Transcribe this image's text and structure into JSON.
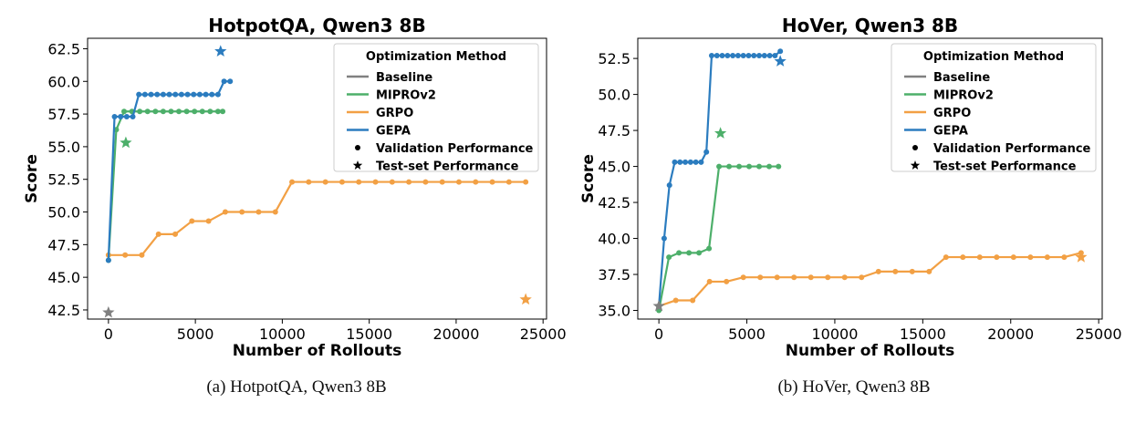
{
  "colors": {
    "baseline": "#808080",
    "mipro": "#4daf6a",
    "grpo": "#f2a044",
    "gepa": "#2b7cbf"
  },
  "chart_data": [
    {
      "type": "line",
      "title": "HotpotQA, Qwen3 8B",
      "caption": "(a) HotpotQA, Qwen3 8B",
      "xlabel": "Number of Rollouts",
      "ylabel": "Score",
      "xlim": [
        -1200,
        25200
      ],
      "ylim": [
        41.8,
        63.3
      ],
      "xticks": [
        0,
        5000,
        10000,
        15000,
        20000,
        25000
      ],
      "yticks": [
        42.5,
        45.0,
        47.5,
        50.0,
        52.5,
        55.0,
        57.5,
        60.0,
        62.5
      ],
      "legend": {
        "title": "Optimization Method",
        "entries": [
          "Baseline",
          "MIPROv2",
          "GRPO",
          "GEPA",
          "Validation Performance",
          "Test-set Performance"
        ]
      },
      "series": [
        {
          "name": "GRPO",
          "color": "#f2a044",
          "x": [
            0,
            960,
            1920,
            2880,
            3840,
            4800,
            5760,
            6720,
            7680,
            8640,
            9600,
            10560,
            11520,
            12480,
            13440,
            14400,
            15360,
            16320,
            17280,
            18240,
            19200,
            20160,
            21120,
            22080,
            23040,
            24000
          ],
          "y": [
            46.7,
            46.7,
            46.7,
            48.3,
            48.3,
            49.3,
            49.3,
            50.0,
            50.0,
            50.0,
            50.0,
            52.3,
            52.3,
            52.3,
            52.3,
            52.3,
            52.3,
            52.3,
            52.3,
            52.3,
            52.3,
            52.3,
            52.3,
            52.3,
            52.3,
            52.3
          ]
        },
        {
          "name": "MIPROv2",
          "color": "#4daf6a",
          "x": [
            0,
            450,
            900,
            1350,
            1800,
            2250,
            2700,
            3150,
            3600,
            4050,
            4500,
            4950,
            5400,
            5850,
            6300,
            6570
          ],
          "y": [
            46.3,
            56.3,
            57.7,
            57.7,
            57.7,
            57.7,
            57.7,
            57.7,
            57.7,
            57.7,
            57.7,
            57.7,
            57.7,
            57.7,
            57.7,
            57.7
          ]
        },
        {
          "name": "GEPA",
          "color": "#2b7cbf",
          "x": [
            0,
            350,
            700,
            1050,
            1400,
            1750,
            2100,
            2450,
            2800,
            3150,
            3500,
            3850,
            4200,
            4550,
            4900,
            5250,
            5600,
            5950,
            6300,
            6650,
            7000
          ],
          "y": [
            46.3,
            57.3,
            57.3,
            57.3,
            57.3,
            59.0,
            59.0,
            59.0,
            59.0,
            59.0,
            59.0,
            59.0,
            59.0,
            59.0,
            59.0,
            59.0,
            59.0,
            59.0,
            59.0,
            60.0,
            60.0
          ]
        }
      ],
      "test_points": [
        {
          "name": "Baseline",
          "color": "#808080",
          "x": 0,
          "y": 42.3
        },
        {
          "name": "MIPROv2",
          "color": "#4daf6a",
          "x": 1000,
          "y": 55.3
        },
        {
          "name": "GEPA",
          "color": "#2b7cbf",
          "x": 6450,
          "y": 62.3
        },
        {
          "name": "GRPO",
          "color": "#f2a044",
          "x": 24000,
          "y": 43.3
        }
      ]
    },
    {
      "type": "line",
      "title": "HoVer, Qwen3 8B",
      "caption": "(b) HoVer, Qwen3 8B",
      "xlabel": "Number of Rollouts",
      "ylabel": "Score",
      "xlim": [
        -1200,
        25200
      ],
      "ylim": [
        34.4,
        53.9
      ],
      "xticks": [
        0,
        5000,
        10000,
        15000,
        20000,
        25000
      ],
      "yticks": [
        35.0,
        37.5,
        40.0,
        42.5,
        45.0,
        47.5,
        50.0,
        52.5
      ],
      "legend": {
        "title": "Optimization Method",
        "entries": [
          "Baseline",
          "MIPROv2",
          "GRPO",
          "GEPA",
          "Validation Performance",
          "Test-set Performance"
        ]
      },
      "series": [
        {
          "name": "GRPO",
          "color": "#f2a044",
          "x": [
            0,
            960,
            1920,
            2880,
            3840,
            4800,
            5760,
            6720,
            7680,
            8640,
            9600,
            10560,
            11520,
            12480,
            13440,
            14400,
            15360,
            16320,
            17280,
            18240,
            19200,
            20160,
            21120,
            22080,
            23040,
            24000
          ],
          "y": [
            35.3,
            35.7,
            35.7,
            37.0,
            37.0,
            37.3,
            37.3,
            37.3,
            37.3,
            37.3,
            37.3,
            37.3,
            37.3,
            37.7,
            37.7,
            37.7,
            37.7,
            38.7,
            38.7,
            38.7,
            38.7,
            38.7,
            38.7,
            38.7,
            38.7,
            39.0
          ]
        },
        {
          "name": "MIPROv2",
          "color": "#4daf6a",
          "x": [
            0,
            570,
            1140,
            1710,
            2280,
            2850,
            3420,
            3990,
            4560,
            5130,
            5700,
            6270,
            6800
          ],
          "y": [
            35.0,
            38.7,
            39.0,
            39.0,
            39.0,
            39.3,
            45.0,
            45.0,
            45.0,
            45.0,
            45.0,
            45.0,
            45.0
          ]
        },
        {
          "name": "GEPA",
          "color": "#2b7cbf",
          "x": [
            0,
            300,
            600,
            900,
            1200,
            1500,
            1800,
            2100,
            2400,
            2700,
            3000,
            3300,
            3600,
            3900,
            4200,
            4500,
            4800,
            5100,
            5400,
            5700,
            6000,
            6300,
            6600,
            6900
          ],
          "y": [
            35.3,
            40.0,
            43.7,
            45.3,
            45.3,
            45.3,
            45.3,
            45.3,
            45.3,
            46.0,
            52.7,
            52.7,
            52.7,
            52.7,
            52.7,
            52.7,
            52.7,
            52.7,
            52.7,
            52.7,
            52.7,
            52.7,
            52.7,
            53.0
          ]
        }
      ],
      "test_points": [
        {
          "name": "Baseline",
          "color": "#808080",
          "x": 0,
          "y": 35.3
        },
        {
          "name": "MIPROv2",
          "color": "#4daf6a",
          "x": 3500,
          "y": 47.3
        },
        {
          "name": "GEPA",
          "color": "#2b7cbf",
          "x": 6900,
          "y": 52.3
        },
        {
          "name": "GRPO",
          "color": "#f2a044",
          "x": 24000,
          "y": 38.7
        }
      ]
    }
  ]
}
